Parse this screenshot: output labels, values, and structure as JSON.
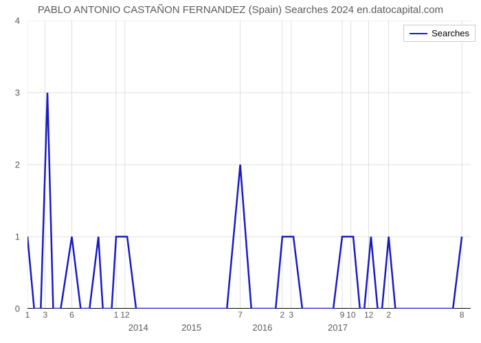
{
  "chart": {
    "type": "line",
    "title": "PABLO ANTONIO CASTAÑON FERNANDEZ (Spain) Searches 2024 en.datocapital.com",
    "title_fontsize": 15,
    "title_color": "#5a5a5a",
    "background_color": "#ffffff",
    "line_color": "#1919c6",
    "line_width": 2.5,
    "grid_color": "#bfbfbf",
    "grid_width": 0.5,
    "axis_color": "#000000",
    "ylim": [
      0,
      4
    ],
    "yticks": [
      0,
      1,
      2,
      3,
      4
    ],
    "xticks_minor": [
      {
        "pos": 0.0,
        "label": "1"
      },
      {
        "pos": 0.04,
        "label": "3"
      },
      {
        "pos": 0.1,
        "label": "6"
      },
      {
        "pos": 0.2,
        "label": "1"
      },
      {
        "pos": 0.22,
        "label": "12"
      },
      {
        "pos": 0.48,
        "label": "7"
      },
      {
        "pos": 0.575,
        "label": "2"
      },
      {
        "pos": 0.595,
        "label": "3"
      },
      {
        "pos": 0.71,
        "label": "9"
      },
      {
        "pos": 0.73,
        "label": "10"
      },
      {
        "pos": 0.77,
        "label": "12"
      },
      {
        "pos": 0.815,
        "label": "2"
      },
      {
        "pos": 0.98,
        "label": "8"
      }
    ],
    "xticks_major": [
      {
        "pos": 0.25,
        "label": "2014"
      },
      {
        "pos": 0.37,
        "label": "2015"
      },
      {
        "pos": 0.53,
        "label": "2016"
      },
      {
        "pos": 0.7,
        "label": "2017"
      }
    ],
    "series": [
      {
        "x": 0.0,
        "y": 1.0
      },
      {
        "x": 0.015,
        "y": 0.0
      },
      {
        "x": 0.03,
        "y": 0.0
      },
      {
        "x": 0.045,
        "y": 3.0
      },
      {
        "x": 0.058,
        "y": 0.0
      },
      {
        "x": 0.075,
        "y": 0.0
      },
      {
        "x": 0.1,
        "y": 1.0
      },
      {
        "x": 0.12,
        "y": 0.0
      },
      {
        "x": 0.14,
        "y": 0.0
      },
      {
        "x": 0.16,
        "y": 1.0
      },
      {
        "x": 0.17,
        "y": 0.0
      },
      {
        "x": 0.19,
        "y": 0.0
      },
      {
        "x": 0.2,
        "y": 1.0
      },
      {
        "x": 0.225,
        "y": 1.0
      },
      {
        "x": 0.245,
        "y": 0.0
      },
      {
        "x": 0.45,
        "y": 0.0
      },
      {
        "x": 0.48,
        "y": 2.0
      },
      {
        "x": 0.505,
        "y": 0.0
      },
      {
        "x": 0.56,
        "y": 0.0
      },
      {
        "x": 0.575,
        "y": 1.0
      },
      {
        "x": 0.6,
        "y": 1.0
      },
      {
        "x": 0.62,
        "y": 0.0
      },
      {
        "x": 0.69,
        "y": 0.0
      },
      {
        "x": 0.71,
        "y": 1.0
      },
      {
        "x": 0.735,
        "y": 1.0
      },
      {
        "x": 0.75,
        "y": 0.0
      },
      {
        "x": 0.76,
        "y": 0.0
      },
      {
        "x": 0.775,
        "y": 1.0
      },
      {
        "x": 0.79,
        "y": 0.0
      },
      {
        "x": 0.8,
        "y": 0.0
      },
      {
        "x": 0.815,
        "y": 1.0
      },
      {
        "x": 0.83,
        "y": 0.0
      },
      {
        "x": 0.96,
        "y": 0.0
      },
      {
        "x": 0.98,
        "y": 1.0
      }
    ],
    "legend": {
      "label": "Searches",
      "line_color": "#1919c6",
      "border_color": "#cccccc",
      "background": "#ffffff"
    },
    "label_fontsize": 13,
    "label_color": "#5a5a5a"
  }
}
